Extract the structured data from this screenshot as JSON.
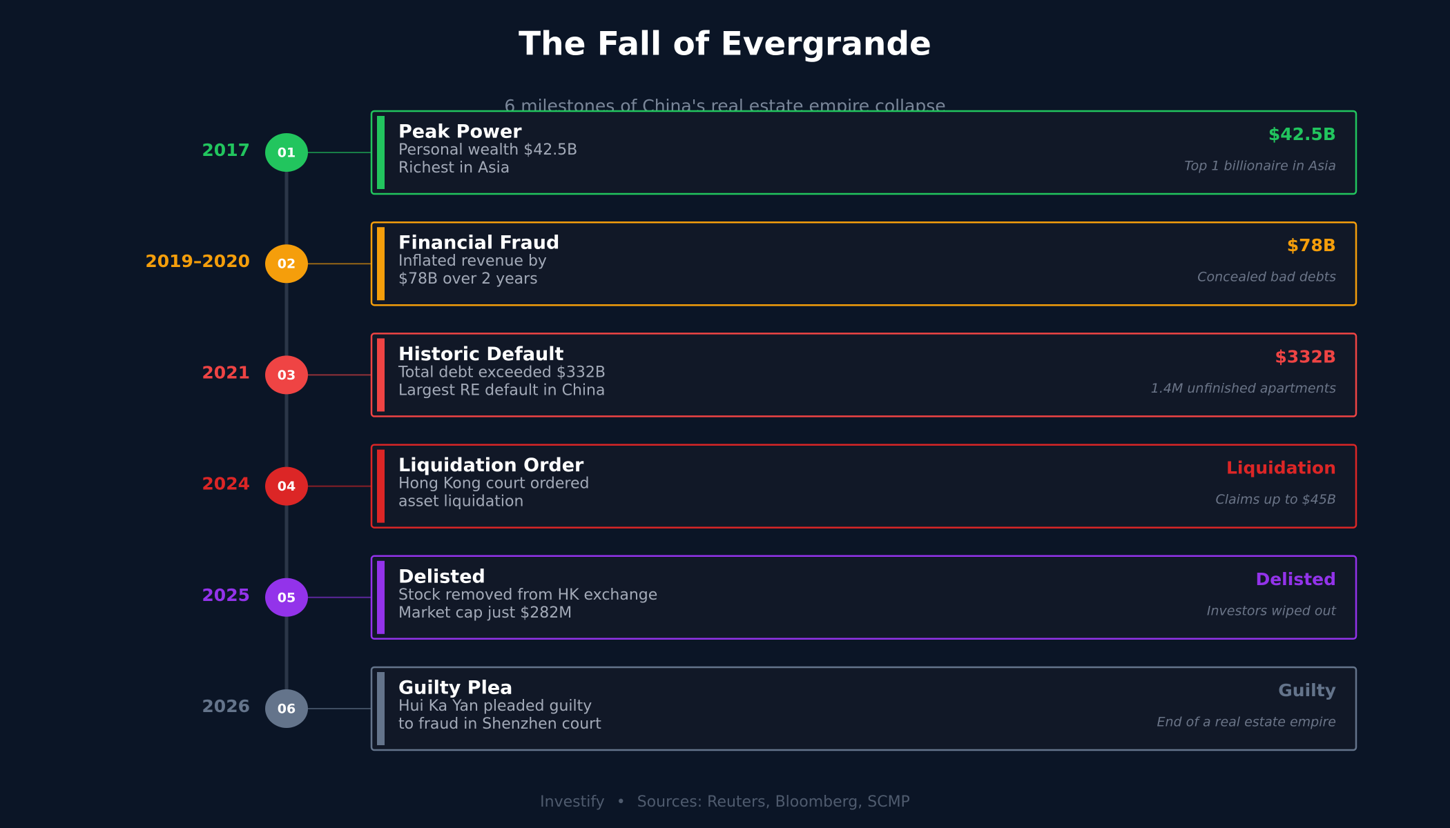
{
  "header": {
    "title": "The Fall of Evergrande",
    "subtitle": "6 milestones of China's real estate empire collapse"
  },
  "milestones": [
    {
      "year": "2017",
      "number": "01",
      "title": "Peak Power",
      "lines": [
        "Personal wealth $42.5B",
        "Richest in Asia"
      ],
      "stat": "$42.5B",
      "note": "Top 1 billionaire in Asia",
      "color": "#22c55e"
    },
    {
      "year": "2019–2020",
      "number": "02",
      "title": "Financial Fraud",
      "lines": [
        "Inflated revenue by",
        "$78B over 2 years"
      ],
      "stat": "$78B",
      "note": "Concealed bad debts",
      "color": "#f59e0b"
    },
    {
      "year": "2021",
      "number": "03",
      "title": "Historic Default",
      "lines": [
        "Total debt exceeded $332B",
        "Largest RE default in China"
      ],
      "stat": "$332B",
      "note": "1.4M unfinished apartments",
      "color": "#ef4444"
    },
    {
      "year": "2024",
      "number": "04",
      "title": "Liquidation Order",
      "lines": [
        "Hong Kong court ordered",
        "asset liquidation"
      ],
      "stat": "Liquidation",
      "note": "Claims up to $45B",
      "color": "#dc2626"
    },
    {
      "year": "2025",
      "number": "05",
      "title": "Delisted",
      "lines": [
        "Stock removed from HK exchange",
        "Market cap just $282M"
      ],
      "stat": "Delisted",
      "note": "Investors wiped out",
      "color": "#9333ea"
    },
    {
      "year": "2026",
      "number": "06",
      "title": "Guilty Plea",
      "lines": [
        "Hui Ka Yan pleaded guilty",
        "to fraud in Shenzhen court"
      ],
      "stat": "Guilty",
      "note": "End of a real estate empire",
      "color": "#64748b"
    }
  ],
  "footer": {
    "brand": "Investify",
    "separator": "•",
    "sources": "Sources: Reuters, Bloomberg, SCMP"
  }
}
